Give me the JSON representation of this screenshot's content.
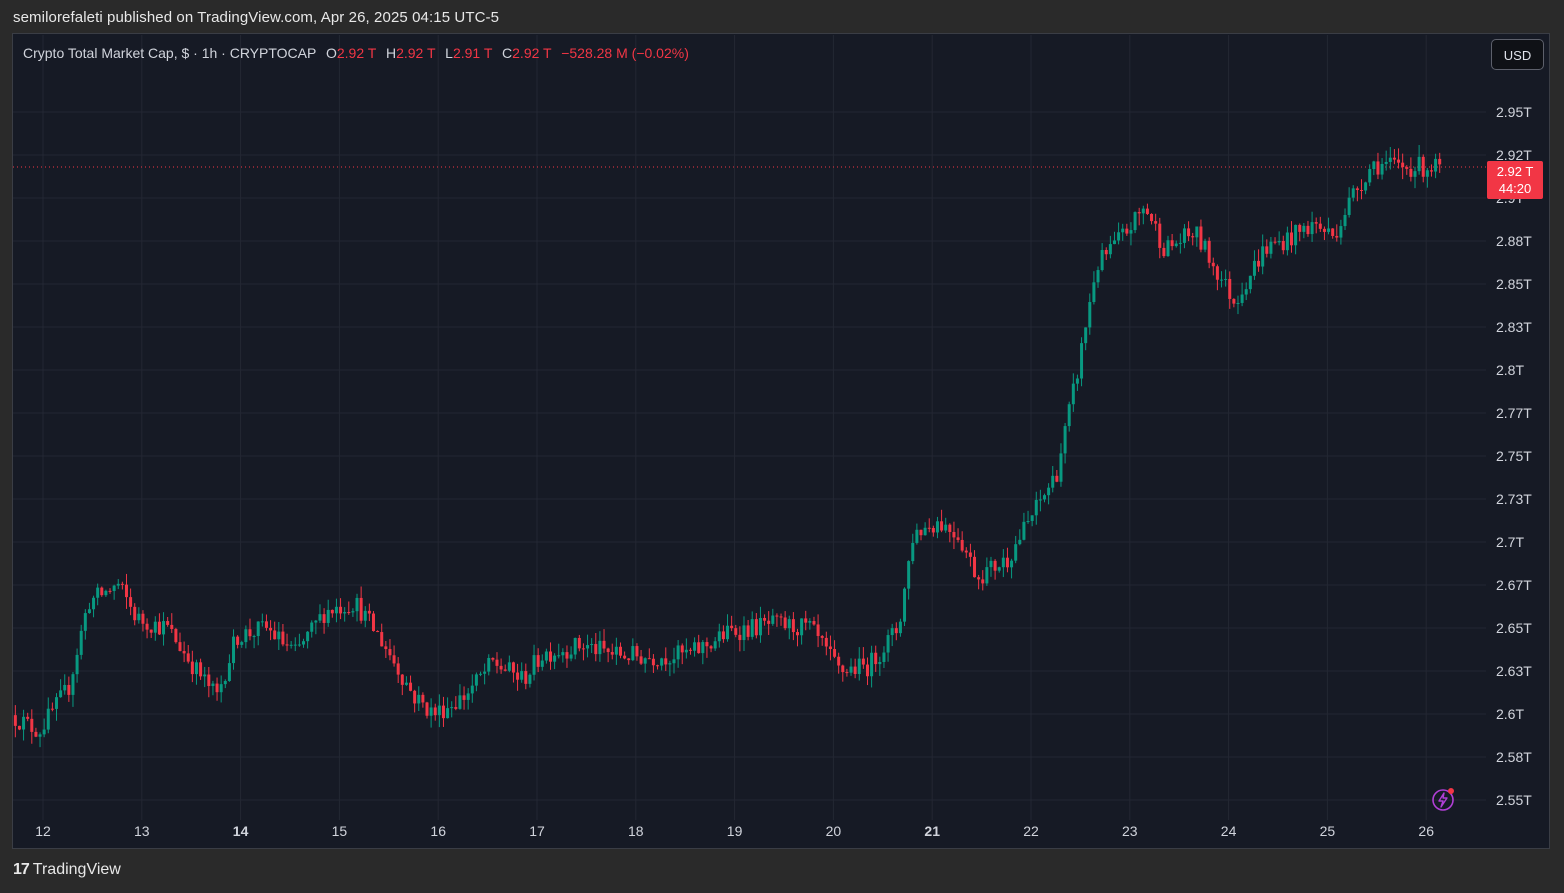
{
  "header": {
    "published_by": "semilorefaleti published on TradingView.com, Apr 26, 2025 04:15 UTC-5"
  },
  "legend": {
    "symbol": "Crypto Total Market Cap, $ · 1h · CRYPTOCAP",
    "open_label": "O",
    "open": "2.92 T",
    "high_label": "H",
    "high": "2.92 T",
    "low_label": "L",
    "low": "2.91 T",
    "close_label": "C",
    "close": "2.92 T",
    "change": "−528.28 M (−0.02%)"
  },
  "currency_button": "USD",
  "price_tag": {
    "price": "2.92 T",
    "countdown": "44:20"
  },
  "footer": {
    "brand": "TradingView"
  },
  "colors": {
    "up": "#089981",
    "down": "#f23645",
    "background": "#161a25",
    "grid": "#232733"
  },
  "icons": [
    "flash-icon",
    "tradingview-logo-icon"
  ],
  "chart_data": {
    "type": "candlestick",
    "interval": "1h",
    "y_axis": {
      "min": 2.55,
      "max": 2.95,
      "unit": "T",
      "tick_labels": [
        "2.95T",
        "2.92T",
        "2.9T",
        "2.88T",
        "2.85T",
        "2.83T",
        "2.8T",
        "2.77T",
        "2.75T",
        "2.73T",
        "2.7T",
        "2.67T",
        "2.65T",
        "2.63T",
        "2.6T",
        "2.58T",
        "2.55T"
      ],
      "tick_values": [
        2.95,
        2.925,
        2.9,
        2.875,
        2.85,
        2.825,
        2.8,
        2.775,
        2.75,
        2.725,
        2.7,
        2.675,
        2.65,
        2.625,
        2.6,
        2.575,
        2.55
      ]
    },
    "x_axis": {
      "tick_labels": [
        "12",
        "13",
        "14",
        "15",
        "16",
        "17",
        "18",
        "19",
        "20",
        "21",
        "22",
        "23",
        "24",
        "25",
        "26"
      ],
      "bold_labels": [
        "14",
        "21"
      ]
    },
    "grid": true,
    "last_price_line": 2.918,
    "approx_close_path": [
      {
        "day": 11.7,
        "close": 2.6
      },
      {
        "day": 12.0,
        "close": 2.59
      },
      {
        "day": 12.3,
        "close": 2.615
      },
      {
        "day": 12.5,
        "close": 2.665
      },
      {
        "day": 12.8,
        "close": 2.675
      },
      {
        "day": 13.0,
        "close": 2.655
      },
      {
        "day": 13.3,
        "close": 2.65
      },
      {
        "day": 13.6,
        "close": 2.625
      },
      {
        "day": 13.8,
        "close": 2.61
      },
      {
        "day": 14.0,
        "close": 2.645
      },
      {
        "day": 14.3,
        "close": 2.65
      },
      {
        "day": 14.6,
        "close": 2.635
      },
      {
        "day": 14.9,
        "close": 2.66
      },
      {
        "day": 15.2,
        "close": 2.665
      },
      {
        "day": 15.5,
        "close": 2.64
      },
      {
        "day": 15.8,
        "close": 2.61
      },
      {
        "day": 16.0,
        "close": 2.6
      },
      {
        "day": 16.3,
        "close": 2.61
      },
      {
        "day": 16.6,
        "close": 2.63
      },
      {
        "day": 16.9,
        "close": 2.62
      },
      {
        "day": 17.1,
        "close": 2.635
      },
      {
        "day": 17.5,
        "close": 2.64
      },
      {
        "day": 17.8,
        "close": 2.635
      },
      {
        "day": 18.2,
        "close": 2.633
      },
      {
        "day": 18.6,
        "close": 2.635
      },
      {
        "day": 19.0,
        "close": 2.648
      },
      {
        "day": 19.4,
        "close": 2.652
      },
      {
        "day": 19.8,
        "close": 2.65
      },
      {
        "day": 20.1,
        "close": 2.625
      },
      {
        "day": 20.4,
        "close": 2.628
      },
      {
        "day": 20.7,
        "close": 2.65
      },
      {
        "day": 20.85,
        "close": 2.705
      },
      {
        "day": 21.1,
        "close": 2.712
      },
      {
        "day": 21.3,
        "close": 2.705
      },
      {
        "day": 21.5,
        "close": 2.68
      },
      {
        "day": 21.8,
        "close": 2.69
      },
      {
        "day": 22.0,
        "close": 2.71
      },
      {
        "day": 22.3,
        "close": 2.74
      },
      {
        "day": 22.5,
        "close": 2.795
      },
      {
        "day": 22.7,
        "close": 2.86
      },
      {
        "day": 23.0,
        "close": 2.88
      },
      {
        "day": 23.2,
        "close": 2.895
      },
      {
        "day": 23.4,
        "close": 2.87
      },
      {
        "day": 23.7,
        "close": 2.88
      },
      {
        "day": 23.9,
        "close": 2.86
      },
      {
        "day": 24.1,
        "close": 2.84
      },
      {
        "day": 24.4,
        "close": 2.87
      },
      {
        "day": 24.7,
        "close": 2.878
      },
      {
        "day": 24.9,
        "close": 2.885
      },
      {
        "day": 25.1,
        "close": 2.878
      },
      {
        "day": 25.3,
        "close": 2.902
      },
      {
        "day": 25.5,
        "close": 2.92
      },
      {
        "day": 25.8,
        "close": 2.918
      },
      {
        "day": 26.1,
        "close": 2.918
      }
    ]
  }
}
